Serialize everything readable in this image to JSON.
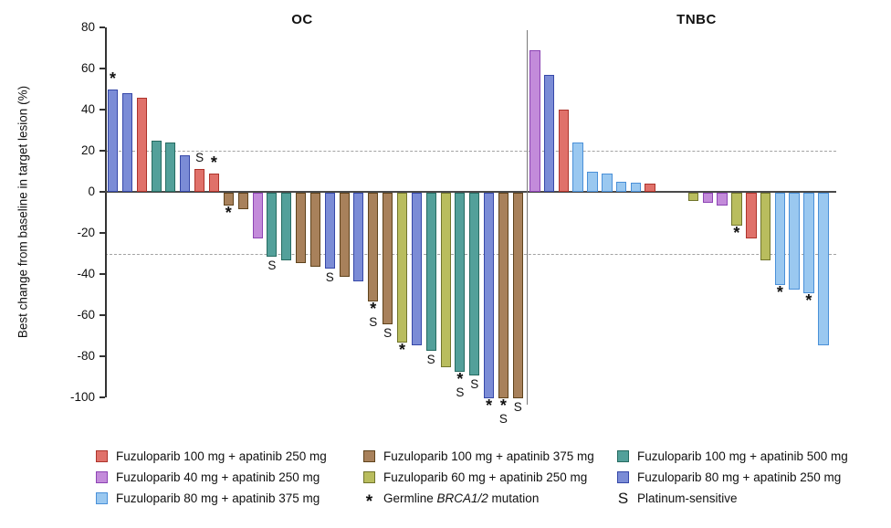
{
  "chart_data": {
    "type": "bar",
    "subtype": "waterfall",
    "ylabel": "Best change from baseline in target lesion (%)",
    "ylim": [
      -100,
      80
    ],
    "yticks": [
      80,
      60,
      40,
      20,
      0,
      -20,
      -40,
      -60,
      -80,
      -100
    ],
    "reference_lines": [
      20,
      -30
    ],
    "grid": "dashed-horizontal-reference-only",
    "legend_position": "bottom",
    "groups": {
      "red": {
        "label": "Fuzuloparib 100 mg + apatinib 250 mg",
        "fill": "#E0716A",
        "stroke": "#AD332B"
      },
      "purple": {
        "label": "Fuzuloparib 40 mg + apatinib 250 mg",
        "fill": "#C38BDA",
        "stroke": "#8D44B4"
      },
      "lightblue": {
        "label": "Fuzuloparib 80 mg + apatinib 375 mg",
        "fill": "#9AC8F0",
        "stroke": "#4A90D8"
      },
      "brown": {
        "label": "Fuzuloparib 100 mg + apatinib 375 mg",
        "fill": "#A8815B",
        "stroke": "#5F431C"
      },
      "olive": {
        "label": "Fuzuloparib 60 mg + apatinib 250 mg",
        "fill": "#B9BD5E",
        "stroke": "#71752C"
      },
      "teal": {
        "label": "Fuzuloparib 100 mg + apatinib 500 mg",
        "fill": "#53A09A",
        "stroke": "#266B61"
      },
      "indigo": {
        "label": "Fuzuloparib 80 mg + apatinib 250 mg",
        "fill": "#7B8CD6",
        "stroke": "#3648A8"
      }
    },
    "marks_meaning": {
      "*": "Germline BRCA1/2 mutation",
      "S": "Platinum-sensitive"
    },
    "panels": [
      {
        "title": "OC",
        "bars": [
          {
            "group": "indigo",
            "value": 50,
            "mark": "*"
          },
          {
            "group": "indigo",
            "value": 48
          },
          {
            "group": "red",
            "value": 46
          },
          {
            "group": "teal",
            "value": 25
          },
          {
            "group": "teal",
            "value": 24
          },
          {
            "group": "indigo",
            "value": 18
          },
          {
            "group": "red",
            "value": 11,
            "mark": "S"
          },
          {
            "group": "red",
            "value": 9,
            "mark": "*"
          },
          {
            "group": "brown",
            "value": -6,
            "mark": "*"
          },
          {
            "group": "brown",
            "value": -8
          },
          {
            "group": "purple",
            "value": -22
          },
          {
            "group": "teal",
            "value": -31,
            "mark": "S"
          },
          {
            "group": "teal",
            "value": -33
          },
          {
            "group": "brown",
            "value": -34
          },
          {
            "group": "brown",
            "value": -36
          },
          {
            "group": "indigo",
            "value": -37,
            "mark": "S"
          },
          {
            "group": "brown",
            "value": -41
          },
          {
            "group": "indigo",
            "value": -43
          },
          {
            "group": "brown",
            "value": -53,
            "mark": "*S"
          },
          {
            "group": "brown",
            "value": -64,
            "mark": "S"
          },
          {
            "group": "olive",
            "value": -73,
            "mark": "*"
          },
          {
            "group": "indigo",
            "value": -74
          },
          {
            "group": "teal",
            "value": -77,
            "mark": "S"
          },
          {
            "group": "olive",
            "value": -85
          },
          {
            "group": "teal",
            "value": -87,
            "mark": "*S"
          },
          {
            "group": "teal",
            "value": -89,
            "mark": "S"
          },
          {
            "group": "indigo",
            "value": -100,
            "mark": "*"
          },
          {
            "group": "brown",
            "value": -100,
            "mark": "*S"
          },
          {
            "group": "brown",
            "value": -100,
            "mark": "S"
          }
        ]
      },
      {
        "title": "TNBC",
        "bars": [
          {
            "group": "purple",
            "value": 69
          },
          {
            "group": "indigo",
            "value": 57
          },
          {
            "group": "red",
            "value": 40
          },
          {
            "group": "lightblue",
            "value": 24
          },
          {
            "group": "lightblue",
            "value": 10
          },
          {
            "group": "lightblue",
            "value": 9
          },
          {
            "group": "lightblue",
            "value": 5
          },
          {
            "group": "lightblue",
            "value": 4.5
          },
          {
            "group": "red",
            "value": 4
          },
          {
            "group": null,
            "value": 0
          },
          {
            "group": null,
            "value": 0
          },
          {
            "group": "olive",
            "value": -4
          },
          {
            "group": "purple",
            "value": -5
          },
          {
            "group": "purple",
            "value": -6
          },
          {
            "group": "olive",
            "value": -16,
            "mark": "*"
          },
          {
            "group": "red",
            "value": -22
          },
          {
            "group": "olive",
            "value": -33
          },
          {
            "group": "lightblue",
            "value": -45,
            "mark": "*"
          },
          {
            "group": "lightblue",
            "value": -47
          },
          {
            "group": "lightblue",
            "value": -49,
            "mark": "*"
          },
          {
            "group": "lightblue",
            "value": -74
          }
        ]
      }
    ]
  },
  "legend": {
    "columns": [
      {
        "items": [
          {
            "swatch": "red"
          },
          {
            "swatch": "purple"
          },
          {
            "swatch": "lightblue"
          }
        ]
      },
      {
        "items": [
          {
            "swatch": "brown"
          },
          {
            "swatch": "olive"
          },
          {
            "symbol": "*",
            "text_prefix": "Germline ",
            "text_italic": "BRCA1/2",
            "text_suffix": " mutation"
          }
        ]
      },
      {
        "items": [
          {
            "swatch": "teal"
          },
          {
            "swatch": "indigo"
          },
          {
            "symbol": "S",
            "text": "Platinum-sensitive"
          }
        ]
      }
    ]
  }
}
